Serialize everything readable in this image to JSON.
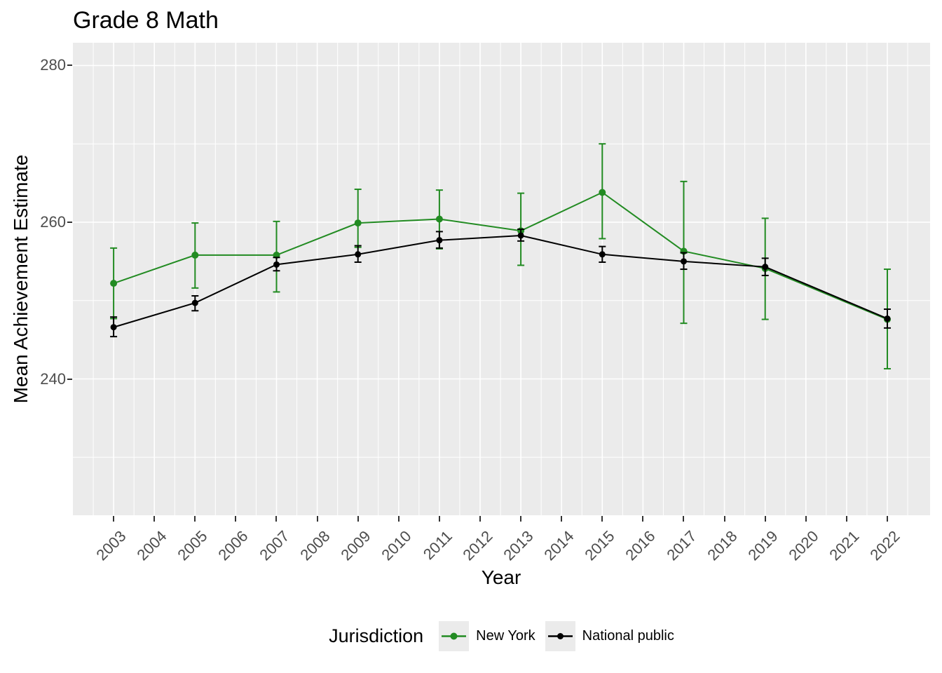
{
  "title": "Grade 8 Math",
  "axes": {
    "x_title": "Year",
    "y_title": "Mean Achievement Estimate"
  },
  "legend": {
    "title": "Jurisdiction",
    "entries": [
      {
        "label": "New York",
        "color": "#228B22"
      },
      {
        "label": "National public",
        "color": "#000000"
      }
    ]
  },
  "colors": {
    "panel_background": "#EBEBEB",
    "gridline": "#FFFFFF",
    "tick_label": "#4D4D4D",
    "tick_mark": "#333333",
    "new_york": "#228B22",
    "national_public": "#000000"
  },
  "chart_data": {
    "type": "line",
    "title": "Grade 8 Math",
    "xlabel": "Year",
    "ylabel": "Mean Achievement Estimate",
    "legend_title": "Jurisdiction",
    "legend_position": "bottom",
    "grid": true,
    "x_ticks": [
      2003,
      2004,
      2005,
      2006,
      2007,
      2008,
      2009,
      2010,
      2011,
      2012,
      2013,
      2014,
      2015,
      2016,
      2017,
      2018,
      2019,
      2020,
      2021,
      2022
    ],
    "x_tick_labels": [
      "2003",
      "2004",
      "2005",
      "2006",
      "2007",
      "2008",
      "2009",
      "2010",
      "2011",
      "2012",
      "2013",
      "2014",
      "2015",
      "2016",
      "2017",
      "2018",
      "2019",
      "2020",
      "2021",
      "2022"
    ],
    "y_ticks": [
      240,
      260,
      280
    ],
    "y_tick_labels": [
      "240",
      "260",
      "280"
    ],
    "y_minor_gridlines": [
      230,
      250,
      270
    ],
    "x_minor_step": 0.5,
    "xlim": [
      2002.0,
      2023.05
    ],
    "ylim": [
      222.6,
      282.9
    ],
    "series": [
      {
        "name": "New York",
        "color": "#228B22",
        "x": [
          2003,
          2005,
          2007,
          2009,
          2011,
          2013,
          2015,
          2017,
          2019,
          2022
        ],
        "values": [
          252.2,
          255.8,
          255.8,
          259.9,
          260.4,
          258.9,
          263.8,
          256.3,
          254.1,
          247.6
        ],
        "ci_low": [
          247.7,
          251.6,
          251.1,
          256.8,
          256.6,
          254.5,
          257.9,
          247.1,
          247.6,
          241.3
        ],
        "ci_high": [
          256.7,
          259.9,
          260.1,
          264.2,
          264.1,
          263.7,
          270.0,
          265.2,
          260.5,
          254.0
        ]
      },
      {
        "name": "National public",
        "color": "#000000",
        "x": [
          2003,
          2005,
          2007,
          2009,
          2011,
          2013,
          2015,
          2017,
          2019,
          2022
        ],
        "values": [
          246.6,
          249.7,
          254.6,
          255.9,
          257.7,
          258.3,
          255.9,
          255.0,
          254.3,
          247.7
        ],
        "ci_low": [
          245.4,
          248.7,
          253.8,
          254.9,
          256.7,
          257.6,
          254.9,
          254.0,
          253.2,
          246.5
        ],
        "ci_high": [
          247.9,
          250.6,
          255.5,
          257.0,
          258.8,
          259.1,
          256.9,
          256.1,
          255.4,
          248.9
        ]
      }
    ]
  }
}
